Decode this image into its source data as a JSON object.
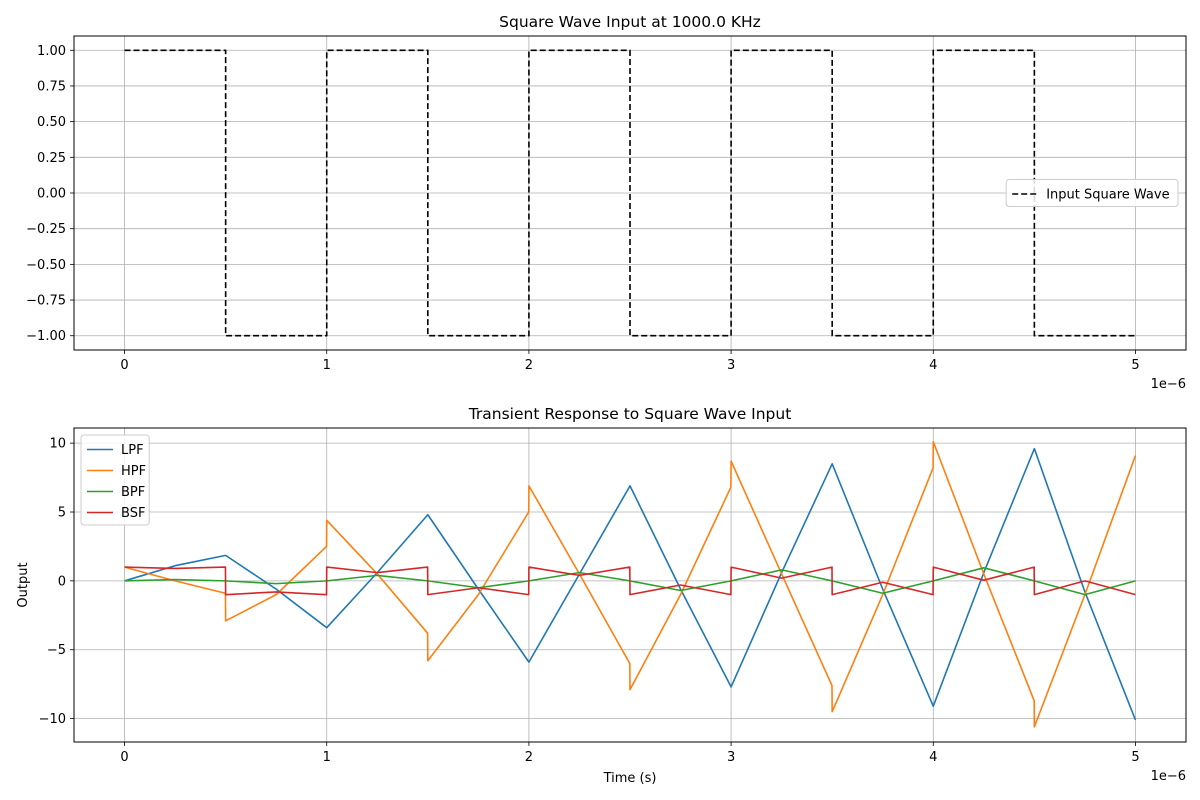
{
  "chart_data": [
    {
      "type": "line",
      "title": "Square Wave Input at 1000.0 KHz",
      "xlabel": "",
      "ylabel": "",
      "x_offset_text": "1e−6",
      "xlim": [
        -2.5e-07,
        5.25e-06
      ],
      "ylim": [
        -1.1,
        1.1
      ],
      "xticks": [
        0,
        1e-06,
        2e-06,
        3e-06,
        4e-06,
        5e-06
      ],
      "xtick_labels": [
        "0",
        "1",
        "2",
        "3",
        "4",
        "5"
      ],
      "yticks": [
        -1.0,
        -0.75,
        -0.5,
        -0.25,
        0.0,
        0.25,
        0.5,
        0.75,
        1.0
      ],
      "ytick_labels": [
        "−1.00",
        "−0.75",
        "−0.50",
        "−0.25",
        "0.00",
        "0.25",
        "0.50",
        "0.75",
        "1.00"
      ],
      "grid": true,
      "legend_position": "center-right",
      "series": [
        {
          "name": "Input Square Wave",
          "style": "dashed",
          "color": "#000000",
          "x": [
            0,
            5e-07,
            5e-07,
            1e-06,
            1e-06,
            1.5e-06,
            1.5e-06,
            2e-06,
            2e-06,
            2.5e-06,
            2.5e-06,
            3e-06,
            3e-06,
            3.5e-06,
            3.5e-06,
            4e-06,
            4e-06,
            4.5e-06,
            4.5e-06,
            5e-06
          ],
          "y": [
            1,
            1,
            -1,
            -1,
            1,
            1,
            -1,
            -1,
            1,
            1,
            -1,
            -1,
            1,
            1,
            -1,
            -1,
            1,
            1,
            -1,
            -1
          ]
        }
      ]
    },
    {
      "type": "line",
      "title": "Transient Response to Square Wave Input",
      "xlabel": "Time (s)",
      "ylabel": "Output",
      "x_offset_text": "1e−6",
      "xlim": [
        -2.5e-07,
        5.25e-06
      ],
      "ylim": [
        -11.7,
        11.1
      ],
      "xticks": [
        0,
        1e-06,
        2e-06,
        3e-06,
        4e-06,
        5e-06
      ],
      "xtick_labels": [
        "0",
        "1",
        "2",
        "3",
        "4",
        "5"
      ],
      "yticks": [
        -10,
        -5,
        0,
        5,
        10
      ],
      "ytick_labels": [
        "−10",
        "−5",
        "0",
        "5",
        "10"
      ],
      "grid": true,
      "legend_position": "upper-left",
      "series": [
        {
          "name": "LPF",
          "color": "#1f77b4",
          "x": [
            0,
            2.5e-07,
            5e-07,
            7.5e-07,
            1e-06,
            1.25e-06,
            1.5e-06,
            1.75e-06,
            2e-06,
            2.25e-06,
            2.5e-06,
            2.75e-06,
            3e-06,
            3.25e-06,
            3.5e-06,
            3.75e-06,
            4e-06,
            4.25e-06,
            4.5e-06,
            4.75e-06,
            5e-06
          ],
          "y": [
            0.0,
            1.1,
            1.85,
            -0.6,
            -3.4,
            0.6,
            4.8,
            -0.6,
            -5.9,
            0.5,
            6.9,
            -0.6,
            -7.7,
            0.6,
            8.5,
            -0.6,
            -9.1,
            0.6,
            9.6,
            -0.8,
            -10.1
          ]
        },
        {
          "name": "HPF",
          "color": "#ff7f0e",
          "x": [
            0,
            2.5e-07,
            4.99e-07,
            5e-07,
            7.5e-07,
            9.99e-07,
            1e-06,
            1.25e-06,
            1.499e-06,
            1.5e-06,
            1.75e-06,
            1.999e-06,
            2e-06,
            2.25e-06,
            2.499e-06,
            2.5e-06,
            2.75e-06,
            2.999e-06,
            3e-06,
            3.25e-06,
            3.499e-06,
            3.5e-06,
            3.75e-06,
            3.999e-06,
            4e-06,
            4.25e-06,
            4.499e-06,
            4.5e-06,
            4.75e-06,
            5e-06
          ],
          "y": [
            1.0,
            0.0,
            -0.9,
            -2.9,
            -1.0,
            2.5,
            4.4,
            0.5,
            -3.8,
            -5.8,
            -1.0,
            5.0,
            6.9,
            0.5,
            -6.0,
            -7.9,
            -1.0,
            6.8,
            8.7,
            0.5,
            -7.6,
            -9.5,
            -1.0,
            8.2,
            10.1,
            0.5,
            -8.7,
            -10.6,
            -1.0,
            9.1
          ]
        },
        {
          "name": "BPF",
          "color": "#2ca02c",
          "x": [
            0,
            2.5e-07,
            5e-07,
            7.5e-07,
            1e-06,
            1.25e-06,
            1.5e-06,
            1.75e-06,
            2e-06,
            2.25e-06,
            2.5e-06,
            2.75e-06,
            3e-06,
            3.25e-06,
            3.5e-06,
            3.75e-06,
            4e-06,
            4.25e-06,
            4.5e-06,
            4.75e-06,
            5e-06
          ],
          "y": [
            0.0,
            0.1,
            0.0,
            -0.2,
            0.0,
            0.4,
            0.0,
            -0.5,
            0.0,
            0.6,
            0.0,
            -0.7,
            0.0,
            0.8,
            0.0,
            -0.9,
            0.0,
            0.95,
            0.0,
            -1.0,
            0.0
          ]
        },
        {
          "name": "BSF",
          "color": "#d62728",
          "x": [
            0,
            2.5e-07,
            4.99e-07,
            5e-07,
            7.5e-07,
            9.99e-07,
            1e-06,
            1.25e-06,
            1.499e-06,
            1.5e-06,
            1.75e-06,
            1.999e-06,
            2e-06,
            2.25e-06,
            2.499e-06,
            2.5e-06,
            2.75e-06,
            2.999e-06,
            3e-06,
            3.25e-06,
            3.499e-06,
            3.5e-06,
            3.75e-06,
            3.999e-06,
            4e-06,
            4.25e-06,
            4.499e-06,
            4.5e-06,
            4.75e-06,
            5e-06
          ],
          "y": [
            1.0,
            0.9,
            1.0,
            -1.0,
            -0.8,
            -1.0,
            1.0,
            0.6,
            1.0,
            -1.0,
            -0.5,
            -1.0,
            1.0,
            0.4,
            1.0,
            -1.0,
            -0.3,
            -1.0,
            1.0,
            0.2,
            1.0,
            -1.0,
            -0.1,
            -1.0,
            1.0,
            0.05,
            1.0,
            -1.0,
            0.0,
            -1.0
          ]
        }
      ]
    }
  ]
}
